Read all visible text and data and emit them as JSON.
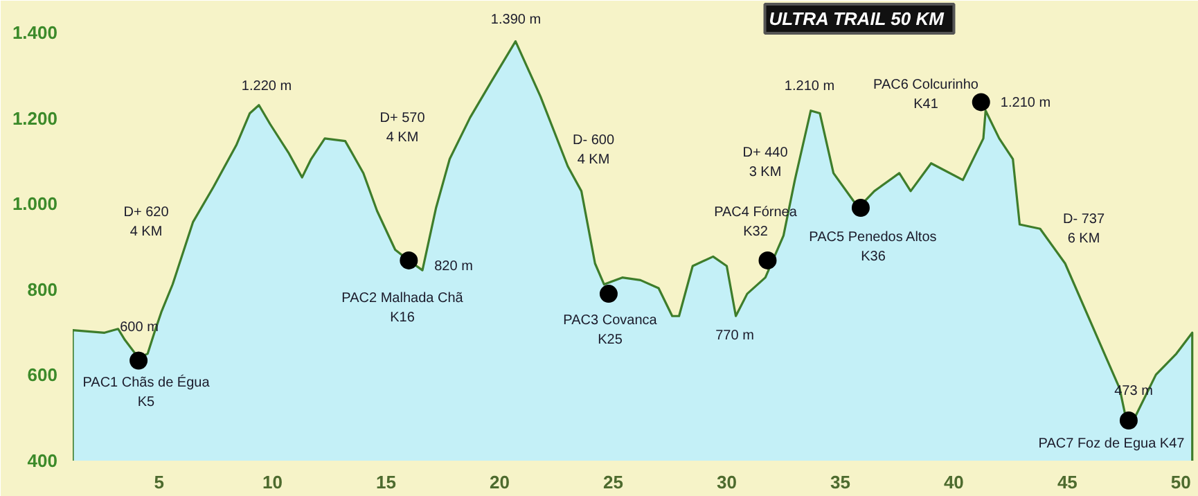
{
  "chart_data": {
    "type": "area",
    "title": "ULTRA TRAIL  50 KM",
    "xlim": [
      1.2,
      50.6
    ],
    "xticks": [
      5,
      10,
      15,
      20,
      25,
      30,
      35,
      40,
      45,
      50
    ],
    "ylim": [
      400,
      1475
    ],
    "yticks": [
      {
        "value": 400,
        "label": "400"
      },
      {
        "value": 600,
        "label": "600"
      },
      {
        "value": 800,
        "label": "800"
      },
      {
        "value": 1000,
        "label": "1.000"
      },
      {
        "value": 1200,
        "label": "1.200"
      },
      {
        "value": 1400,
        "label": "1.400"
      }
    ],
    "grid": false,
    "series": [
      {
        "color": "#c4f0f7",
        "x": [
          1.2,
          2.6,
          3.2,
          3.5,
          4.1,
          4.5,
          4.8,
          5.1,
          5.6,
          6.5,
          7.4,
          8.4,
          9.0,
          9.4,
          9.9,
          10.7,
          11.3,
          11.7,
          12.3,
          13.2,
          14.0,
          14.6,
          15.4,
          16.0,
          16.6,
          17.2,
          17.8,
          18.7,
          19.6,
          20.7,
          21.8,
          23.0,
          23.6,
          24.2,
          24.6,
          25.4,
          26.2,
          27.0,
          27.6,
          27.9,
          28.5,
          29.4,
          30.0,
          30.4,
          30.9,
          31.7,
          32.5,
          33.0,
          33.7,
          34.1,
          34.7,
          35.8,
          36.5,
          37.6,
          38.1,
          39.0,
          40.4,
          41.3,
          41.4,
          42.0,
          42.6,
          42.9,
          43.8,
          44.9,
          46.5,
          47.3,
          47.6,
          48.0,
          48.9,
          49.8,
          50.5
        ],
        "values": [
          705,
          699,
          708,
          682,
          640,
          650,
          700,
          747,
          812,
          958,
          1040,
          1137,
          1212,
          1231,
          1186,
          1120,
          1062,
          1105,
          1153,
          1147,
          1072,
          984,
          893,
          868,
          845,
          991,
          1105,
          1202,
          1283,
          1380,
          1251,
          1088,
          1030,
          861,
          812,
          828,
          822,
          803,
          738,
          738,
          855,
          877,
          855,
          738,
          790,
          828,
          926,
          1056,
          1218,
          1212,
          1072,
          991,
          1030,
          1072,
          1030,
          1095,
          1056,
          1153,
          1218,
          1153,
          1105,
          952,
          942,
          861,
          666,
          569,
          494,
          504,
          601,
          650,
          699
        ]
      },
      {
        "type": "scatter",
        "marker": "circle",
        "color": "#000000",
        "x": [
          4.1,
          16.0,
          24.8,
          31.8,
          35.9,
          41.2,
          47.7
        ],
        "values": [
          634,
          868,
          790,
          868,
          991,
          1238,
          494
        ]
      }
    ],
    "annotations": [
      "1.220 m",
      "D+ 620\n4 KM",
      "600 m",
      "PAC1 Chãs de Égua\nK5",
      "D+ 570\n4 KM",
      "PAC2 Malhada Chã\nK16",
      "820 m",
      "1.390 m",
      "D- 600\n4 KM",
      "PAC3 Covanca\nK25",
      "770 m",
      "D+ 440\n3 KM",
      "PAC4 Fórnea\nK32",
      "1.210 m",
      "PAC6 Colcurinho\nK41",
      "1.210 m",
      "PAC5 Penedos Altos\nK36",
      "D- 737\n6 KM",
      "473 m",
      "PAC7 Foz de Egua K47"
    ]
  }
}
